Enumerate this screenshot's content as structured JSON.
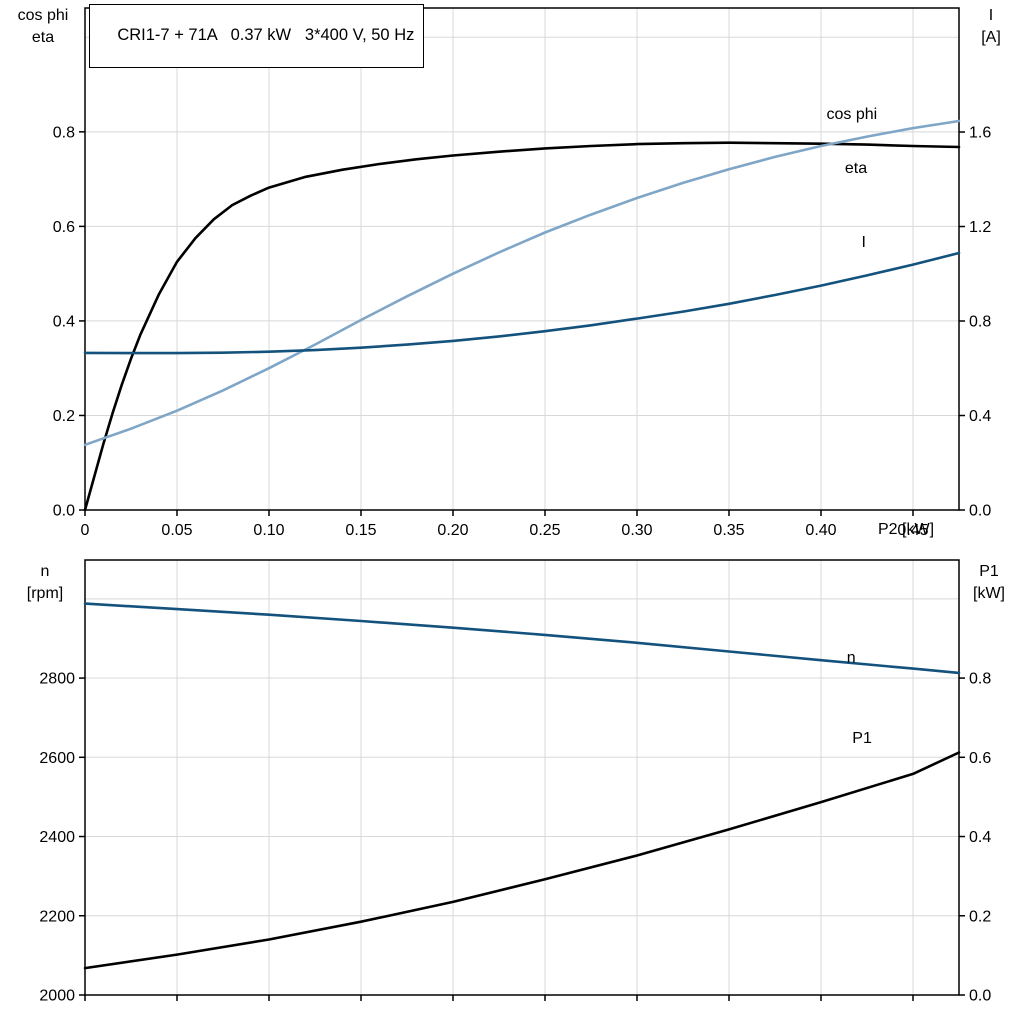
{
  "header": {
    "title_box": "CRI1-7 + 71A   0.37 kW   3*400 V, 50 Hz"
  },
  "axis_corner_labels": {
    "top_left": [
      "cos phi",
      "eta"
    ],
    "top_right": [
      "I",
      "[A]"
    ],
    "bottom_left": [
      "n",
      "[rpm]"
    ],
    "bottom_right": [
      "P1",
      "[kW]"
    ],
    "x_axis": "P2 [kW]"
  },
  "colors": {
    "black": "#000000",
    "light_blue": "#7fa6c6",
    "dark_blue": "#14527e",
    "grid": "#d8d8d8",
    "frame": "#000000"
  },
  "chart_data": [
    {
      "type": "line",
      "title": "CRI1-7 + 71A   0.37 kW   3*400 V, 50 Hz",
      "xlabel": "P2 [kW]",
      "grid_on": true,
      "legend_position": "inline-labels",
      "x_axis": {
        "lim": [
          0,
          0.475
        ],
        "ticks": [
          0,
          0.05,
          0.1,
          0.15,
          0.2,
          0.25,
          0.3,
          0.35,
          0.4,
          0.45
        ],
        "tick_labels": [
          "0",
          "0.05",
          "0.10",
          "0.15",
          "0.20",
          "0.25",
          "0.30",
          "0.35",
          "0.40",
          "0.45"
        ],
        "show_tick_labels": true
      },
      "left_axis": {
        "label": "cos phi / eta",
        "lim": [
          0,
          1.062
        ],
        "ticks": [
          0.0,
          0.2,
          0.4,
          0.6,
          0.8
        ],
        "tick_labels": [
          "0.0",
          "0.2",
          "0.4",
          "0.6",
          "0.8"
        ],
        "grid": [
          0.2,
          0.4,
          0.6,
          0.8,
          1.0
        ]
      },
      "right_axis": {
        "label": "I [A]",
        "lim": [
          0,
          2.125
        ],
        "ticks": [
          0.0,
          0.4,
          0.8,
          1.2,
          1.6
        ],
        "tick_labels": [
          "0.0",
          "0.4",
          "0.8",
          "1.2",
          "1.6"
        ]
      },
      "series": [
        {
          "name": "eta",
          "label": "eta",
          "axis": "left",
          "color": "#000000",
          "label_pos": [
            0.413,
            0.724
          ],
          "points": [
            [
              0,
              0
            ],
            [
              0.005,
              0.07
            ],
            [
              0.01,
              0.14
            ],
            [
              0.015,
              0.205
            ],
            [
              0.02,
              0.265
            ],
            [
              0.025,
              0.32
            ],
            [
              0.03,
              0.37
            ],
            [
              0.04,
              0.455
            ],
            [
              0.05,
              0.525
            ],
            [
              0.06,
              0.575
            ],
            [
              0.07,
              0.615
            ],
            [
              0.08,
              0.645
            ],
            [
              0.09,
              0.665
            ],
            [
              0.1,
              0.682
            ],
            [
              0.12,
              0.705
            ],
            [
              0.14,
              0.72
            ],
            [
              0.16,
              0.732
            ],
            [
              0.18,
              0.742
            ],
            [
              0.2,
              0.75
            ],
            [
              0.225,
              0.758
            ],
            [
              0.25,
              0.765
            ],
            [
              0.275,
              0.77
            ],
            [
              0.3,
              0.774
            ],
            [
              0.325,
              0.776
            ],
            [
              0.35,
              0.777
            ],
            [
              0.375,
              0.776
            ],
            [
              0.4,
              0.775
            ],
            [
              0.425,
              0.773
            ],
            [
              0.45,
              0.77
            ],
            [
              0.475,
              0.768
            ]
          ]
        },
        {
          "name": "cos phi",
          "label": "cos phi",
          "axis": "left",
          "color": "#7fa6c6",
          "label_pos": [
            0.403,
            0.838
          ],
          "points": [
            [
              0,
              0.138
            ],
            [
              0.025,
              0.172
            ],
            [
              0.05,
              0.21
            ],
            [
              0.075,
              0.253
            ],
            [
              0.1,
              0.3
            ],
            [
              0.125,
              0.35
            ],
            [
              0.15,
              0.402
            ],
            [
              0.175,
              0.452
            ],
            [
              0.2,
              0.5
            ],
            [
              0.225,
              0.545
            ],
            [
              0.25,
              0.587
            ],
            [
              0.275,
              0.625
            ],
            [
              0.3,
              0.66
            ],
            [
              0.325,
              0.692
            ],
            [
              0.35,
              0.721
            ],
            [
              0.375,
              0.747
            ],
            [
              0.4,
              0.77
            ],
            [
              0.425,
              0.79
            ],
            [
              0.45,
              0.808
            ],
            [
              0.475,
              0.823
            ]
          ]
        },
        {
          "name": "I",
          "label": "I",
          "axis": "right",
          "color": "#14527e",
          "label_pos": [
            0.422,
            1.135
          ],
          "points": [
            [
              0,
              0.665
            ],
            [
              0.025,
              0.664
            ],
            [
              0.05,
              0.664
            ],
            [
              0.075,
              0.666
            ],
            [
              0.1,
              0.67
            ],
            [
              0.125,
              0.677
            ],
            [
              0.15,
              0.687
            ],
            [
              0.175,
              0.7
            ],
            [
              0.2,
              0.716
            ],
            [
              0.225,
              0.735
            ],
            [
              0.25,
              0.757
            ],
            [
              0.275,
              0.782
            ],
            [
              0.3,
              0.81
            ],
            [
              0.325,
              0.84
            ],
            [
              0.35,
              0.873
            ],
            [
              0.375,
              0.91
            ],
            [
              0.4,
              0.95
            ],
            [
              0.425,
              0.993
            ],
            [
              0.45,
              1.039
            ],
            [
              0.475,
              1.088
            ]
          ]
        }
      ]
    },
    {
      "type": "line",
      "title": "",
      "xlabel": "",
      "grid_on": true,
      "legend_position": "inline-labels",
      "x_axis": {
        "lim": [
          0,
          0.475
        ],
        "ticks": [
          0,
          0.05,
          0.1,
          0.15,
          0.2,
          0.25,
          0.3,
          0.35,
          0.4,
          0.45
        ],
        "tick_labels": [],
        "show_tick_labels": false
      },
      "left_axis": {
        "label": "n [rpm]",
        "lim": [
          2000,
          3098
        ],
        "ticks": [
          2000,
          2200,
          2400,
          2600,
          2800
        ],
        "tick_labels": [
          "2000",
          "2200",
          "2400",
          "2600",
          "2800"
        ],
        "grid": [
          2200,
          2400,
          2600,
          2800,
          3000
        ]
      },
      "right_axis": {
        "label": "P1 [kW]",
        "lim": [
          0,
          1.098
        ],
        "ticks": [
          0.0,
          0.2,
          0.4,
          0.6,
          0.8
        ],
        "tick_labels": [
          "0.0",
          "0.2",
          "0.4",
          "0.6",
          "0.8"
        ]
      },
      "series": [
        {
          "name": "n",
          "label": "n",
          "axis": "left",
          "color": "#14527e",
          "label_pos": [
            0.414,
            2852
          ],
          "points": [
            [
              0,
              2988
            ],
            [
              0.05,
              2974
            ],
            [
              0.1,
              2960
            ],
            [
              0.15,
              2944
            ],
            [
              0.2,
              2927
            ],
            [
              0.25,
              2909
            ],
            [
              0.3,
              2889
            ],
            [
              0.35,
              2867
            ],
            [
              0.4,
              2845
            ],
            [
              0.45,
              2824
            ],
            [
              0.475,
              2813
            ]
          ]
        },
        {
          "name": "P1",
          "label": "P1",
          "axis": "right",
          "color": "#000000",
          "label_pos": [
            0.417,
            0.649
          ],
          "points": [
            [
              0,
              0.068
            ],
            [
              0.05,
              0.102
            ],
            [
              0.1,
              0.14
            ],
            [
              0.15,
              0.185
            ],
            [
              0.2,
              0.235
            ],
            [
              0.25,
              0.292
            ],
            [
              0.3,
              0.352
            ],
            [
              0.35,
              0.418
            ],
            [
              0.4,
              0.487
            ],
            [
              0.45,
              0.558
            ],
            [
              0.475,
              0.612
            ]
          ]
        }
      ]
    }
  ]
}
